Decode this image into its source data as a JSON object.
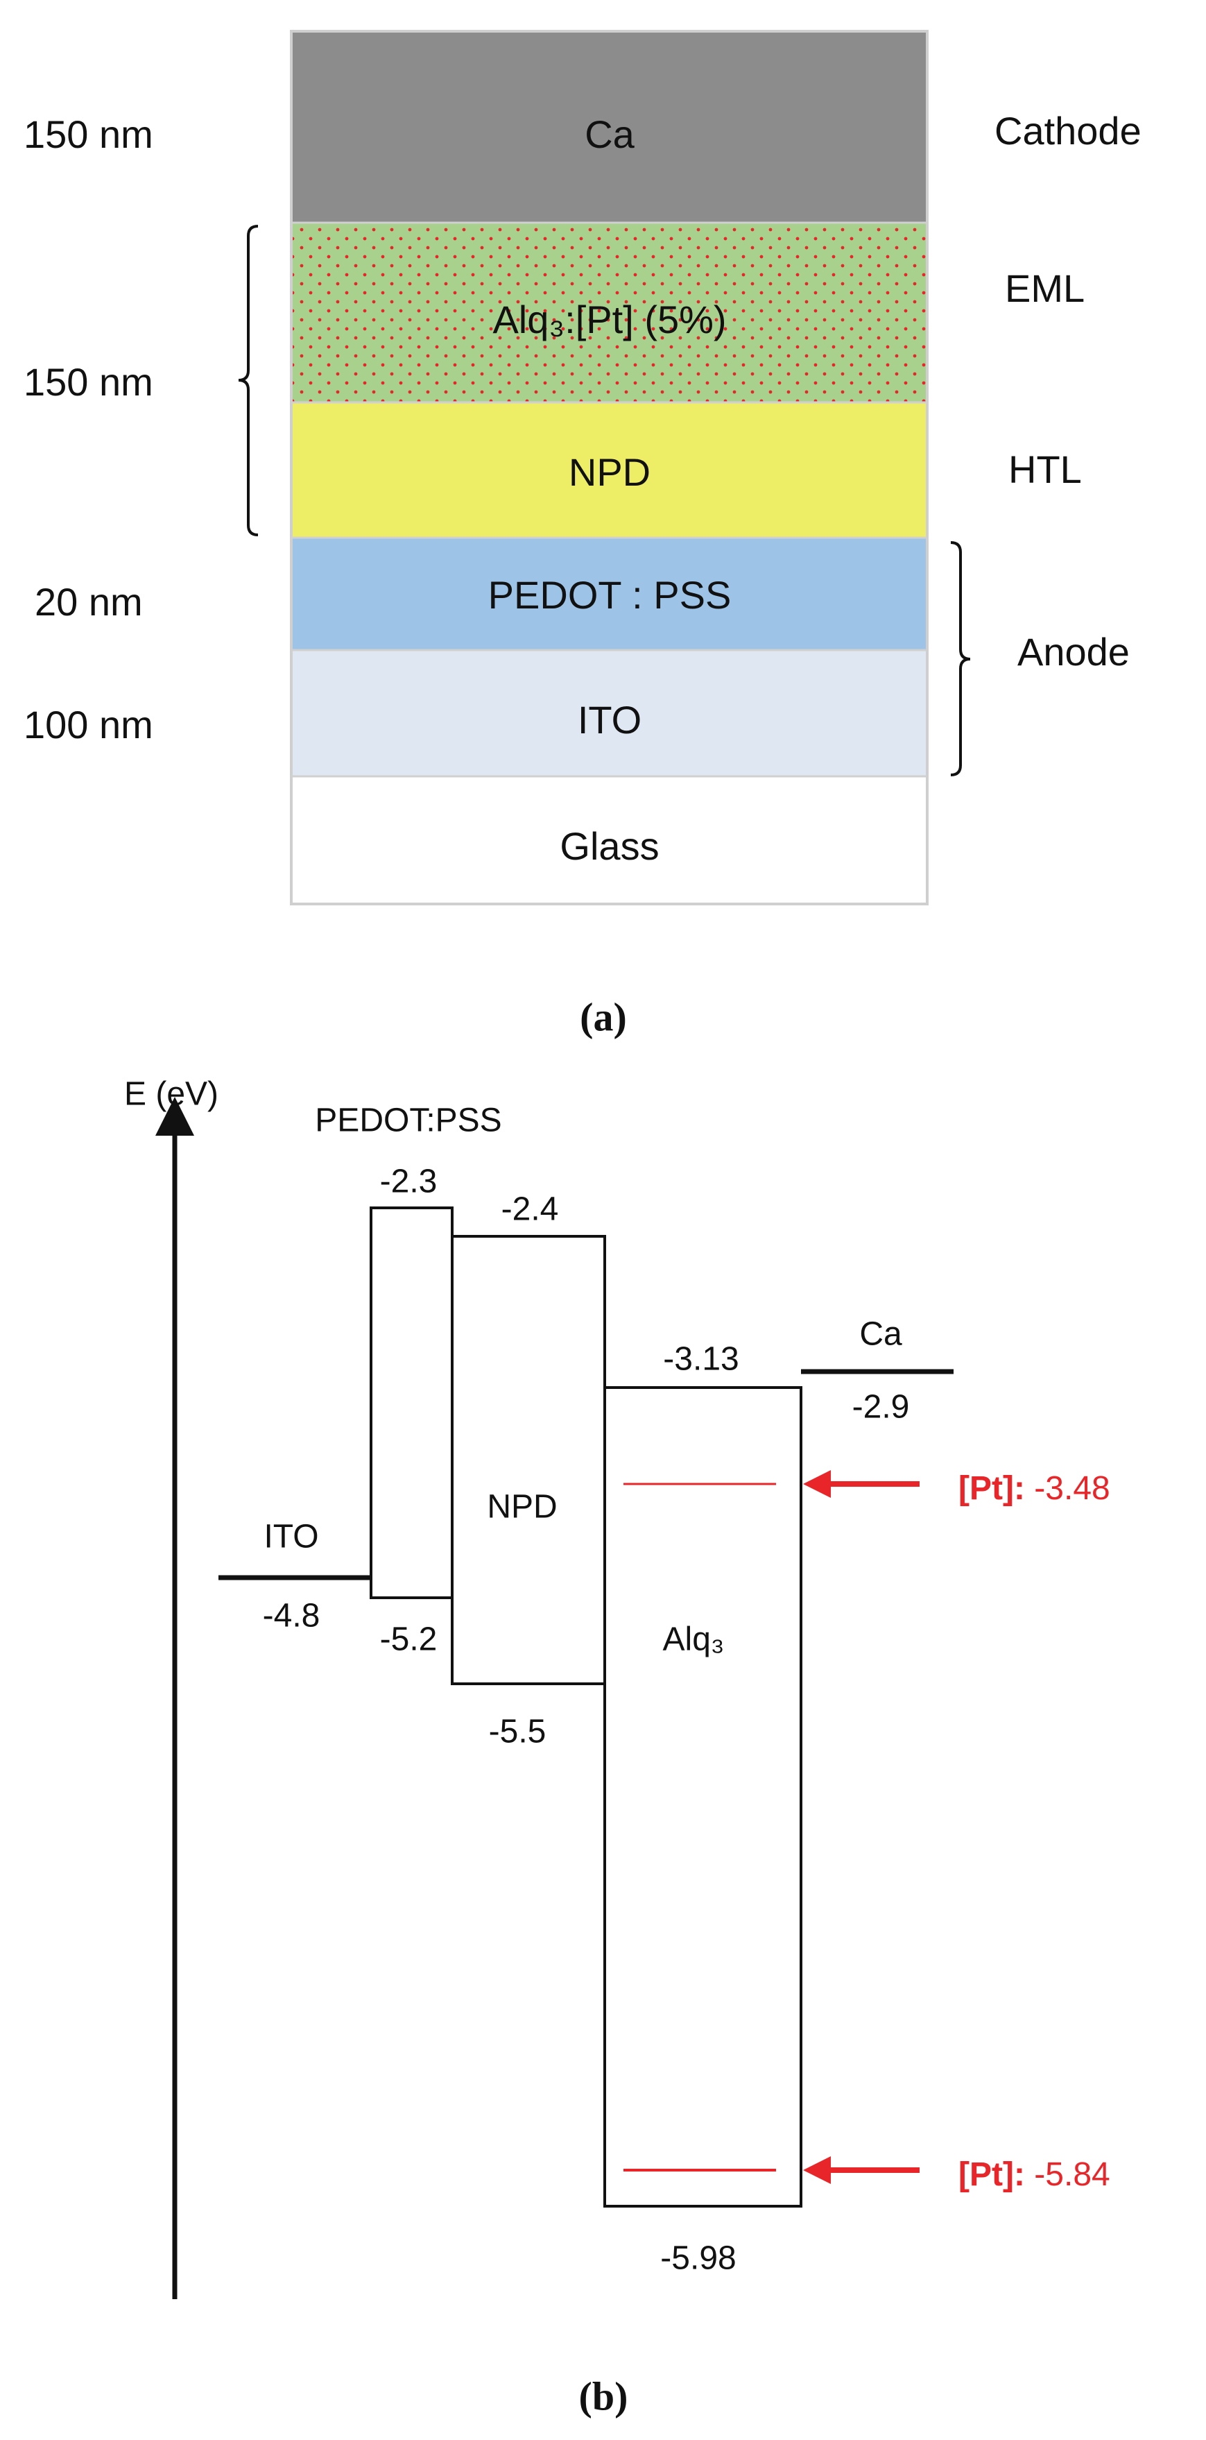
{
  "panel_a": {
    "layers": [
      "Ca",
      "Alq₃:[Pt] (5%)",
      "NPD",
      "PEDOT : PSS",
      "ITO",
      "Glass"
    ],
    "thicknesses": [
      "150 nm",
      "150 nm",
      "20 nm",
      "100 nm"
    ],
    "roles": [
      "Cathode",
      "EML",
      "HTL",
      "Anode"
    ],
    "caption": "(a)"
  },
  "panel_b": {
    "axis_label": "E (eV)",
    "ito": {
      "label": "ITO",
      "level": "-4.8"
    },
    "pedot": {
      "label": "PEDOT:PSS",
      "top": "-2.3",
      "bottom": "-5.2"
    },
    "npd": {
      "label": "NPD",
      "top": "-2.4",
      "bottom": "-5.5"
    },
    "alq3": {
      "label": "Alq₃",
      "top": "-3.13",
      "bottom": "-5.98"
    },
    "ca": {
      "label": "Ca",
      "level": "-2.9"
    },
    "dopant_levels": [
      {
        "label": "[Pt]:",
        "value": "-3.48"
      },
      {
        "label": "[Pt]:",
        "value": "-5.84"
      }
    ],
    "caption": "(b)"
  }
}
